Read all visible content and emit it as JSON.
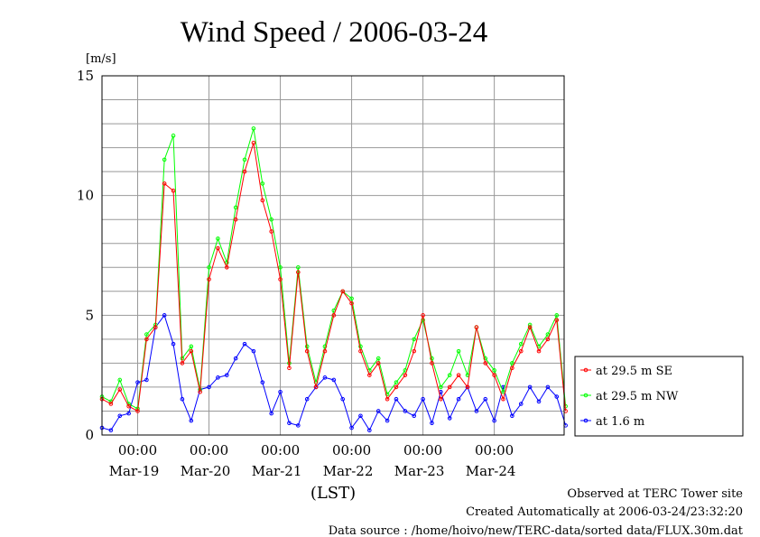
{
  "chart_data": {
    "type": "line",
    "title": "Wind Speed / 2006-03-24",
    "ylabel": "[m/s]",
    "xlabel": "(LST)",
    "ylim": [
      0,
      15
    ],
    "y_ticks": [
      0,
      5,
      10,
      15
    ],
    "x_range_days": [
      "Mar-18 12:00",
      "Mar-24 23:30"
    ],
    "x_ticks": [
      {
        "time": "00:00",
        "date": "Mar-19"
      },
      {
        "time": "00:00",
        "date": "Mar-20"
      },
      {
        "time": "00:00",
        "date": "Mar-21"
      },
      {
        "time": "00:00",
        "date": "Mar-22"
      },
      {
        "time": "00:00",
        "date": "Mar-23"
      },
      {
        "time": "00:00",
        "date": "Mar-24"
      }
    ],
    "grid": true,
    "legend_position": "right",
    "x_hours": [
      0,
      3,
      6,
      9,
      12,
      15,
      18,
      21,
      24,
      27,
      30,
      33,
      36,
      39,
      42,
      45,
      48,
      51,
      54,
      57,
      60,
      63,
      66,
      69,
      72,
      75,
      78,
      81,
      84,
      87,
      90,
      93,
      96,
      99,
      102,
      105,
      108,
      111,
      114,
      117,
      120,
      123,
      126,
      129,
      132,
      135,
      138,
      141,
      144,
      147,
      150,
      153,
      156
    ],
    "x_unit": "hours since Mar-18 12:00",
    "series": [
      {
        "name": "at 29.5 m SE",
        "color": "#ff0000",
        "values": [
          1.5,
          1.3,
          1.9,
          1.2,
          1.0,
          4.0,
          4.5,
          10.5,
          10.2,
          3.0,
          3.5,
          1.8,
          6.5,
          7.8,
          7.0,
          9.0,
          11.0,
          12.2,
          9.8,
          8.5,
          6.5,
          2.8,
          6.8,
          3.5,
          2.0,
          3.5,
          5.0,
          6.0,
          5.5,
          3.5,
          2.5,
          3.0,
          1.5,
          2.0,
          2.5,
          3.5,
          5.0,
          3.0,
          1.5,
          2.0,
          2.5,
          2.0,
          4.5,
          3.0,
          2.5,
          1.5,
          2.8,
          3.5,
          4.5,
          3.5,
          4.0,
          4.8,
          1.0
        ]
      },
      {
        "name": "at 29.5 m NW",
        "color": "#00ff00",
        "values": [
          1.6,
          1.4,
          2.3,
          1.3,
          1.1,
          4.2,
          4.6,
          11.5,
          12.5,
          3.2,
          3.7,
          1.9,
          7.0,
          8.2,
          7.2,
          9.5,
          11.5,
          12.8,
          10.5,
          9.0,
          7.0,
          3.0,
          7.0,
          3.7,
          2.2,
          3.7,
          5.2,
          6.0,
          5.7,
          3.7,
          2.7,
          3.2,
          1.7,
          2.2,
          2.7,
          4.0,
          4.8,
          3.2,
          2.0,
          2.5,
          3.5,
          2.5,
          4.5,
          3.2,
          2.7,
          1.8,
          3.0,
          3.8,
          4.6,
          3.7,
          4.2,
          5.0,
          1.2
        ]
      },
      {
        "name": "at 1.6 m",
        "color": "#0000ff",
        "values": [
          0.3,
          0.2,
          0.8,
          0.9,
          2.2,
          2.3,
          4.5,
          5.0,
          3.8,
          1.5,
          0.6,
          1.9,
          2.0,
          2.4,
          2.5,
          3.2,
          3.8,
          3.5,
          2.2,
          0.9,
          1.8,
          0.5,
          0.4,
          1.5,
          2.0,
          2.4,
          2.3,
          1.5,
          0.3,
          0.8,
          0.2,
          1.0,
          0.6,
          1.5,
          1.0,
          0.8,
          1.5,
          0.5,
          1.8,
          0.7,
          1.5,
          2.0,
          1.0,
          1.5,
          0.6,
          2.0,
          0.8,
          1.3,
          2.0,
          1.4,
          2.0,
          1.6,
          0.4
        ]
      }
    ]
  },
  "footer": {
    "line1": "Observed at TERC Tower site",
    "line2": "Created Automatically at 2006-03-24/23:32:20",
    "line3": "Data source : /home/hoivo/new/TERC-data/sorted  data/FLUX.30m.dat"
  }
}
